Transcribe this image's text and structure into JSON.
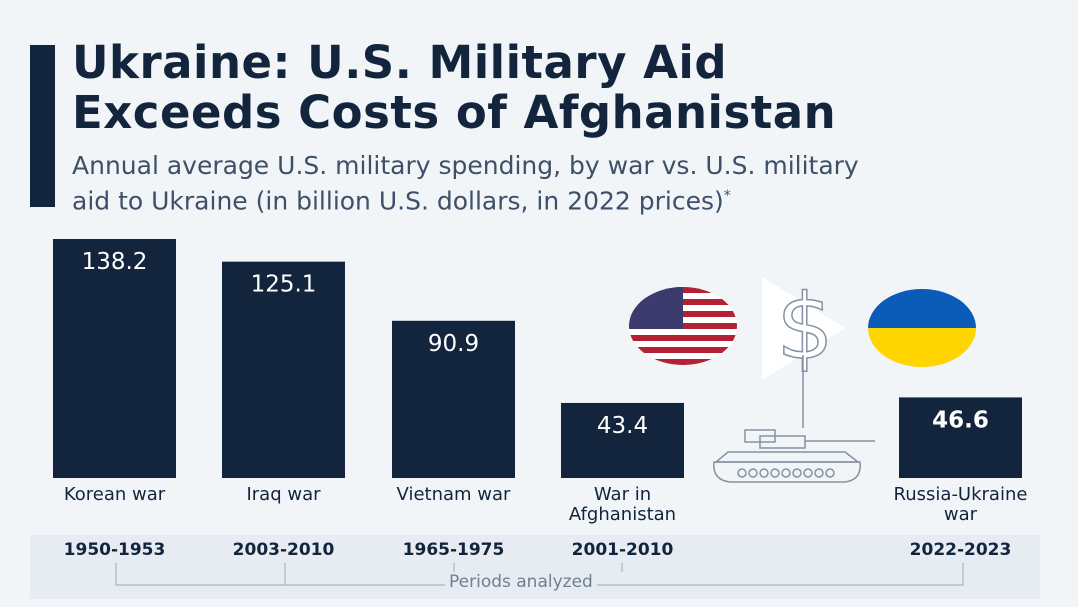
{
  "header": {
    "title_line1": "Ukraine: U.S. Military Aid",
    "title_line2": "Exceeds Costs of Afghanistan",
    "subtitle_line1": "Annual average U.S. military spending, by war vs. U.S. military",
    "subtitle_line2": "aid to Ukraine (in billion U.S. dollars, in 2022 prices)",
    "footnote_mark": "*"
  },
  "chart_data": {
    "type": "bar",
    "title": "Ukraine: U.S. Military Aid Exceeds Costs of Afghanistan",
    "categories": [
      "Korean war",
      "Iraq war",
      "Vietnam war",
      "War in Afghanistan",
      "Russia-Ukraine war"
    ],
    "values": [
      138.2,
      125.1,
      90.9,
      43.4,
      46.6
    ],
    "labels": [
      "138.2",
      "125.1",
      "90.9",
      "43.4",
      "46.6"
    ],
    "periods": [
      "1950-1953",
      "2003-2010",
      "1965-1975",
      "2001-2010",
      "2022-2023"
    ],
    "xlabel": "Periods analyzed",
    "ylabel": "billion U.S. dollars",
    "ylim": [
      0,
      138.2
    ],
    "bar_color": "#13243d"
  }
}
